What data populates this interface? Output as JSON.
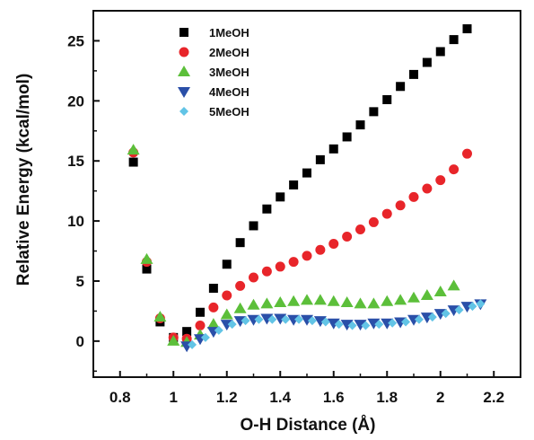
{
  "chart_data": {
    "type": "scatter",
    "title": "",
    "xlabel": "O-H Distance (Å)",
    "ylabel": "Relative Energy (kcal/mol)",
    "xlim": [
      0.7,
      2.3
    ],
    "ylim": [
      -3,
      27.5
    ],
    "xticks": [
      0.8,
      1.0,
      1.2,
      1.4,
      1.6,
      1.8,
      2.0,
      2.2
    ],
    "xtick_labels": [
      "0.8",
      "1",
      "1.2",
      "1.4",
      "1.6",
      "1.8",
      "2",
      "2.2"
    ],
    "yticks": [
      0,
      5,
      10,
      15,
      20,
      25
    ],
    "ytick_labels": [
      "0",
      "5",
      "10",
      "15",
      "20",
      "25"
    ],
    "grid": false,
    "legend_position": "top-center",
    "series": [
      {
        "name": "1MeOH",
        "marker": "square",
        "color": "#000000",
        "points": [
          [
            0.85,
            14.9
          ],
          [
            0.9,
            6.0
          ],
          [
            0.95,
            1.6
          ],
          [
            1.0,
            0.3
          ],
          [
            1.05,
            0.8
          ],
          [
            1.1,
            2.4
          ],
          [
            1.15,
            4.4
          ],
          [
            1.2,
            6.4
          ],
          [
            1.25,
            8.2
          ],
          [
            1.3,
            9.6
          ],
          [
            1.35,
            11.0
          ],
          [
            1.4,
            12.0
          ],
          [
            1.45,
            13.0
          ],
          [
            1.5,
            14.0
          ],
          [
            1.55,
            15.1
          ],
          [
            1.6,
            16.0
          ],
          [
            1.65,
            17.0
          ],
          [
            1.7,
            18.0
          ],
          [
            1.75,
            19.1
          ],
          [
            1.8,
            20.1
          ],
          [
            1.85,
            21.2
          ],
          [
            1.9,
            22.2
          ],
          [
            1.95,
            23.2
          ],
          [
            2.0,
            24.1
          ],
          [
            2.05,
            25.1
          ],
          [
            2.1,
            26.0
          ]
        ]
      },
      {
        "name": "2MeOH",
        "marker": "circle",
        "color": "#e8252a",
        "points": [
          [
            0.85,
            15.7
          ],
          [
            0.9,
            6.6
          ],
          [
            0.95,
            1.9
          ],
          [
            1.0,
            0.3
          ],
          [
            1.05,
            0.2
          ],
          [
            1.1,
            1.3
          ],
          [
            1.15,
            2.8
          ],
          [
            1.2,
            3.8
          ],
          [
            1.25,
            4.6
          ],
          [
            1.3,
            5.3
          ],
          [
            1.35,
            5.8
          ],
          [
            1.4,
            6.2
          ],
          [
            1.45,
            6.6
          ],
          [
            1.5,
            7.1
          ],
          [
            1.55,
            7.6
          ],
          [
            1.6,
            8.1
          ],
          [
            1.65,
            8.7
          ],
          [
            1.7,
            9.3
          ],
          [
            1.75,
            9.9
          ],
          [
            1.8,
            10.6
          ],
          [
            1.85,
            11.3
          ],
          [
            1.9,
            12.0
          ],
          [
            1.95,
            12.7
          ],
          [
            2.0,
            13.4
          ],
          [
            2.05,
            14.3
          ],
          [
            2.1,
            15.6
          ]
        ]
      },
      {
        "name": "3MeOH",
        "marker": "triangle-up",
        "color": "#5cbf3a",
        "points": [
          [
            0.85,
            15.9
          ],
          [
            0.9,
            6.8
          ],
          [
            0.95,
            2.0
          ],
          [
            1.0,
            0.0
          ],
          [
            1.05,
            -0.1
          ],
          [
            1.1,
            0.5
          ],
          [
            1.15,
            1.4
          ],
          [
            1.2,
            2.2
          ],
          [
            1.25,
            2.7
          ],
          [
            1.3,
            3.0
          ],
          [
            1.35,
            3.1
          ],
          [
            1.4,
            3.2
          ],
          [
            1.45,
            3.3
          ],
          [
            1.5,
            3.4
          ],
          [
            1.55,
            3.4
          ],
          [
            1.6,
            3.3
          ],
          [
            1.65,
            3.2
          ],
          [
            1.7,
            3.1
          ],
          [
            1.75,
            3.1
          ],
          [
            1.8,
            3.3
          ],
          [
            1.85,
            3.4
          ],
          [
            1.9,
            3.6
          ],
          [
            1.95,
            3.8
          ],
          [
            2.0,
            4.1
          ],
          [
            2.05,
            4.6
          ]
        ]
      },
      {
        "name": "4MeOH",
        "marker": "triangle-down",
        "color": "#2a4fa8",
        "points": [
          [
            1.05,
            -0.4
          ],
          [
            1.1,
            0.2
          ],
          [
            1.15,
            0.8
          ],
          [
            1.2,
            1.4
          ],
          [
            1.25,
            1.7
          ],
          [
            1.3,
            1.8
          ],
          [
            1.35,
            1.9
          ],
          [
            1.4,
            1.9
          ],
          [
            1.45,
            1.8
          ],
          [
            1.5,
            1.8
          ],
          [
            1.55,
            1.7
          ],
          [
            1.6,
            1.5
          ],
          [
            1.65,
            1.4
          ],
          [
            1.7,
            1.4
          ],
          [
            1.75,
            1.5
          ],
          [
            1.8,
            1.5
          ],
          [
            1.85,
            1.6
          ],
          [
            1.9,
            1.8
          ],
          [
            1.95,
            2.0
          ],
          [
            2.0,
            2.3
          ],
          [
            2.05,
            2.6
          ],
          [
            2.1,
            2.9
          ],
          [
            2.15,
            3.1
          ]
        ]
      },
      {
        "name": "5MeOH",
        "marker": "diamond",
        "color": "#62c4e6",
        "points": [
          [
            1.07,
            -0.3
          ],
          [
            1.12,
            0.3
          ],
          [
            1.17,
            0.9
          ],
          [
            1.22,
            1.4
          ],
          [
            1.27,
            1.7
          ],
          [
            1.32,
            1.8
          ],
          [
            1.37,
            1.8
          ],
          [
            1.42,
            1.8
          ],
          [
            1.47,
            1.8
          ],
          [
            1.52,
            1.7
          ],
          [
            1.57,
            1.6
          ],
          [
            1.62,
            1.4
          ],
          [
            1.67,
            1.3
          ],
          [
            1.72,
            1.3
          ],
          [
            1.77,
            1.4
          ],
          [
            1.82,
            1.5
          ],
          [
            1.87,
            1.6
          ],
          [
            1.92,
            1.8
          ],
          [
            1.97,
            2.0
          ],
          [
            2.02,
            2.3
          ],
          [
            2.07,
            2.6
          ],
          [
            2.12,
            2.9
          ],
          [
            2.15,
            3.1
          ]
        ]
      }
    ]
  }
}
